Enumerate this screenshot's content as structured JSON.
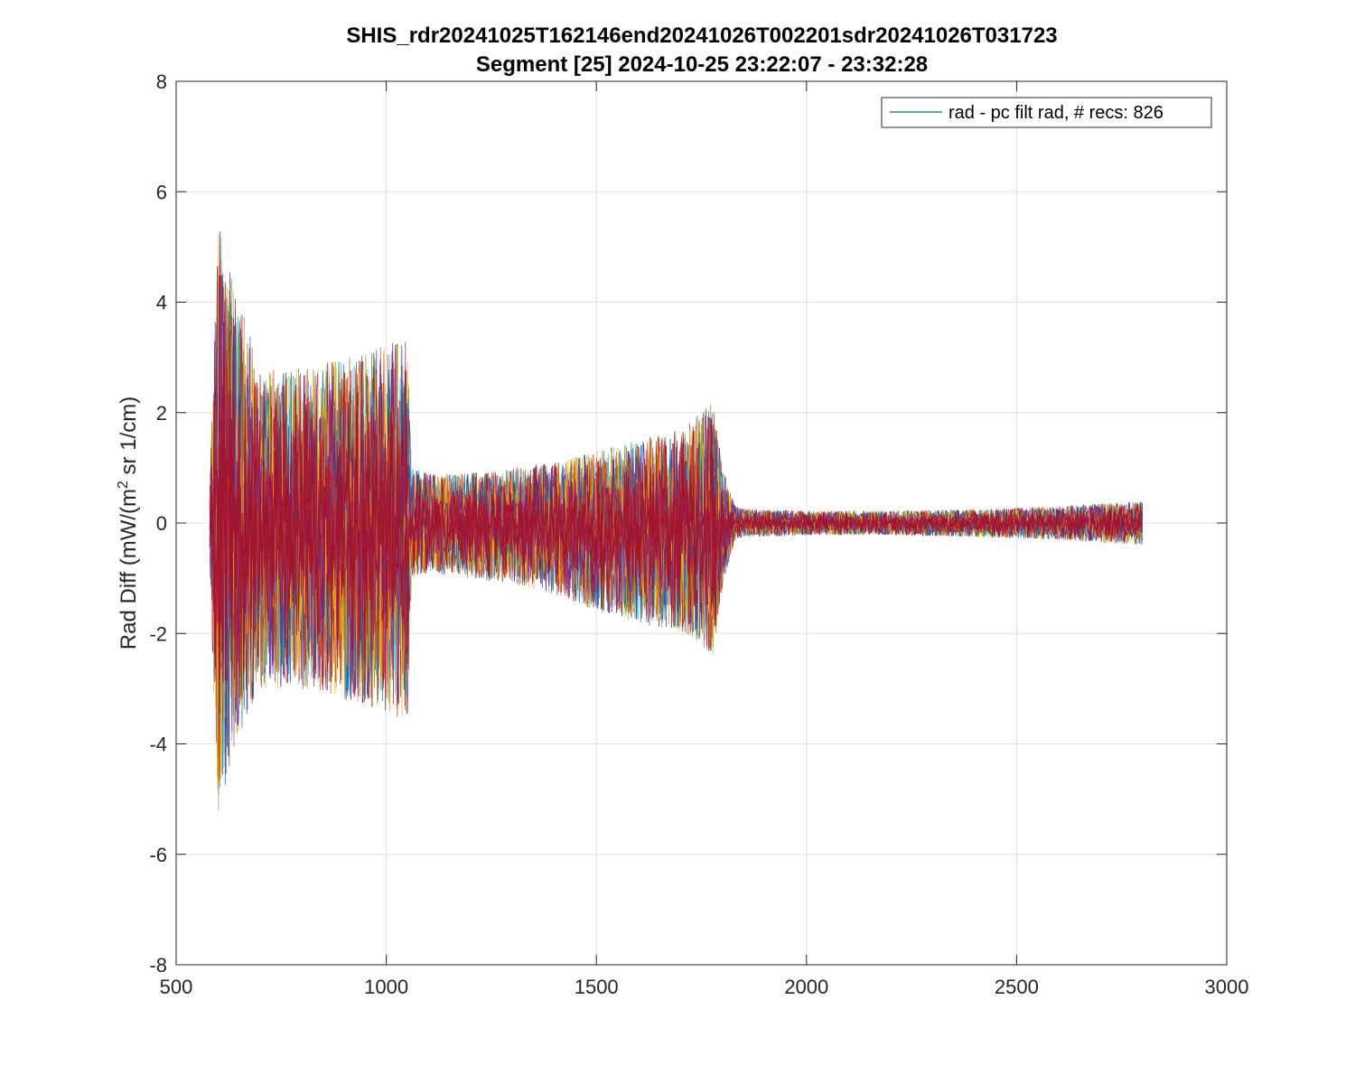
{
  "chart_data": {
    "type": "line",
    "title": "SHIS_rdr20241025T162146end20241026T002201sdr20241026T031723",
    "subtitle": "Segment [25] 2024-10-25 23:22:07 - 23:32:28",
    "xlabel": "",
    "ylabel_main": "Rad Diff (mW/(m",
    "ylabel_sup": "2",
    "ylabel_tail": " sr 1/cm)",
    "xlim": [
      500,
      3000
    ],
    "ylim": [
      -8,
      8
    ],
    "x_ticks": [
      "500",
      "1000",
      "1500",
      "2000",
      "2500",
      "3000"
    ],
    "x_tick_values": [
      500,
      1000,
      1500,
      2000,
      2500,
      3000
    ],
    "y_ticks": [
      "-8",
      "-6",
      "-4",
      "-2",
      "0",
      "2",
      "4",
      "6",
      "8"
    ],
    "y_tick_values": [
      -8,
      -6,
      -4,
      -2,
      0,
      2,
      4,
      6,
      8
    ],
    "grid": true,
    "legend": {
      "placement": "top-right",
      "label": "rad - pc filt rad, # recs:  826",
      "color": "#007a5e"
    },
    "envelope": {
      "description_x": [
        580,
        600,
        630,
        700,
        800,
        900,
        1000,
        1050,
        1060,
        1100,
        1200,
        1300,
        1400,
        1500,
        1600,
        1700,
        1780,
        1800,
        1830,
        1850,
        2000,
        2200,
        2400,
        2600,
        2700,
        2800
      ],
      "upper": [
        0.8,
        5.5,
        4.5,
        2.8,
        2.8,
        3.0,
        3.2,
        3.4,
        1.0,
        0.9,
        0.9,
        1.0,
        1.1,
        1.3,
        1.5,
        1.7,
        2.2,
        1.0,
        0.3,
        0.25,
        0.22,
        0.22,
        0.25,
        0.3,
        0.35,
        0.4
      ],
      "lower": [
        -0.8,
        -5.5,
        -4.3,
        -3.0,
        -3.0,
        -3.2,
        -3.4,
        -3.6,
        -1.0,
        -0.9,
        -1.0,
        -1.1,
        -1.3,
        -1.6,
        -1.8,
        -2.0,
        -2.4,
        -1.2,
        -0.3,
        -0.25,
        -0.22,
        -0.22,
        -0.25,
        -0.3,
        -0.35,
        -0.4
      ]
    },
    "series_colors": [
      "#0072bd",
      "#d95319",
      "#edb120",
      "#7e2f8e",
      "#77ac30",
      "#4dbeee",
      "#a2142f"
    ],
    "record_count": 826
  }
}
